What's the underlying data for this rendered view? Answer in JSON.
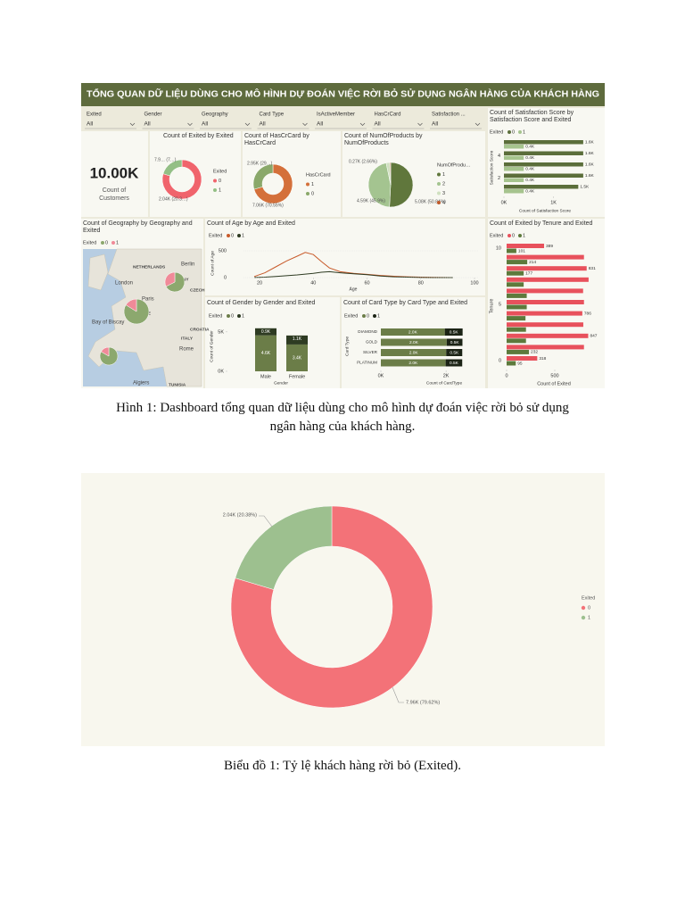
{
  "dashboard": {
    "title": "TỔNG QUAN DỮ LIỆU DÙNG CHO MÔ HÌNH DỰ ĐOÁN VIỆC RỜI BỎ SỬ DỤNG NGÂN HÀNG CỦA KHÁCH HÀNG",
    "slicers": [
      {
        "label": "Exited",
        "value": "All"
      },
      {
        "label": "Gender",
        "value": "All"
      },
      {
        "label": "Geography",
        "value": "All"
      },
      {
        "label": "Card Type",
        "value": "All"
      },
      {
        "label": "IsActiveMember",
        "value": "All"
      },
      {
        "label": "HasCrCard",
        "value": "All"
      },
      {
        "label": "Satisfaction ...",
        "value": "All"
      }
    ],
    "kpi": {
      "value": "10.00K",
      "label_lines": [
        "Count of",
        "Customers"
      ]
    },
    "exited_pie": {
      "type": "pie",
      "title": "Count of Exited by Exited",
      "legend_title": "Exited",
      "categories": [
        "0",
        "1"
      ],
      "values": [
        7962,
        2038
      ],
      "value_labels": [
        "7.9… (7…)",
        "2.04K (20.3…)"
      ],
      "colors": [
        "#f0646c",
        "#93bf85"
      ]
    },
    "hascrcard_pie": {
      "type": "pie",
      "title": "Count of HasCrCard by HasCrCard",
      "legend_title": "HasCrCard",
      "categories": [
        "1",
        "0"
      ],
      "values": [
        7055,
        2945
      ],
      "value_labels": [
        "7.06K (70.55%)",
        "2.95K (29…)"
      ],
      "colors": [
        "#d4703a",
        "#8aa86a"
      ]
    },
    "products_pie": {
      "type": "pie",
      "title": "Count of NumOfProducts by NumOfProducts",
      "legend_title": "NumOfProdu…",
      "categories": [
        "1",
        "2",
        "3",
        "4"
      ],
      "values": [
        5084,
        4590,
        266,
        60
      ],
      "value_labels": [
        "5.08K (50.84%)",
        "4.59K (45.9%)",
        "0.27K (2.66%)",
        null
      ],
      "colors": [
        "#60773c",
        "#a4c490",
        "#cfe0c0",
        "#c05a2a"
      ]
    },
    "satisfaction": {
      "type": "bar",
      "title": "Count of Satisfaction Score by Satisfaction Score and Exited",
      "legend_title": "Exited",
      "y_label": "Satisfaction Score",
      "x_label": "Count of Satisfaction Score",
      "categories": [
        null,
        "4",
        null,
        "2",
        null
      ],
      "series": [
        {
          "name": "0",
          "color": "#5b6e3a",
          "values": [
            1600,
            1600,
            1600,
            1600,
            1500
          ],
          "value_labels": [
            "1.6K",
            "1.6K",
            "1.6K",
            "1.6K",
            "1.5K"
          ]
        },
        {
          "name": "1",
          "color": "#a6c48e",
          "values": [
            400,
            400,
            400,
            400,
            400
          ],
          "value_labels": [
            "0.4K",
            "0.4K",
            "0.4K",
            "0.4K",
            "0.4K"
          ]
        }
      ],
      "xlim": [
        0,
        1800
      ],
      "xticks": [
        {
          "value": 0,
          "label": "0K"
        },
        {
          "value": 1000,
          "label": "1K"
        }
      ]
    },
    "geography": {
      "title": "Count of Geography by Geography and Exited",
      "legend_title": "Exited",
      "series": [
        {
          "name": "0",
          "color": "#8ca86e"
        },
        {
          "name": "1",
          "color": "#f08a98"
        }
      ],
      "places": [
        "NETHERLANDS",
        "Berlin",
        "London",
        "GERMANY",
        "CZECH",
        "Paris",
        "FRANCE",
        "Bay of Biscay",
        "ITALY",
        "CROATIA",
        "SPAIN",
        "Rome",
        "Algiers",
        "TUNISIA"
      ],
      "pies": [
        [
          1695,
          814
        ],
        [
          4204,
          810
        ],
        [
          2064,
          413
        ]
      ]
    },
    "age": {
      "type": "line",
      "title": "Count of Age by Age and Exited",
      "legend_title": "Exited",
      "x_label": "Age",
      "y_label": "Count of Age",
      "x": [
        18,
        22,
        26,
        30,
        34,
        37,
        40,
        43,
        46,
        50,
        55,
        60,
        65,
        70,
        75,
        80,
        85,
        92
      ],
      "series": [
        {
          "name": "0",
          "color": "#c85a2a",
          "values": [
            20,
            90,
            200,
            310,
            400,
            470,
            430,
            300,
            180,
            110,
            80,
            60,
            40,
            25,
            15,
            8,
            4,
            1
          ]
        },
        {
          "name": "1",
          "color": "#2e3b22",
          "values": [
            2,
            8,
            20,
            35,
            50,
            65,
            80,
            100,
            110,
            90,
            70,
            55,
            30,
            15,
            8,
            3,
            1,
            0
          ]
        }
      ],
      "xlim": [
        15,
        100
      ],
      "xticks": [
        20,
        40,
        60,
        80,
        100
      ],
      "ylim": [
        0,
        600
      ],
      "yticks": [
        0,
        500
      ]
    },
    "tenure": {
      "type": "bar",
      "title": "Count of Exited by Tenure and Exited",
      "legend_title": "Exited",
      "y_label": "Tenure",
      "x_label": "Count of Exited",
      "categories": [
        "10",
        null,
        null,
        null,
        null,
        "5",
        null,
        null,
        null,
        null,
        "0"
      ],
      "series": [
        {
          "name": "0",
          "color": "#e8515c",
          "values": [
            389,
            803,
            831,
            851,
            794,
            803,
            786,
            796,
            847,
            803,
            318
          ],
          "value_labels": [
            "389",
            null,
            "831",
            null,
            null,
            null,
            "786",
            null,
            "847",
            null,
            "318"
          ]
        },
        {
          "name": "1",
          "color": "#5d7a3c",
          "values": [
            101,
            214,
            177,
            177,
            209,
            209,
            196,
            201,
            201,
            232,
            95
          ],
          "value_labels": [
            "101",
            "214",
            "177",
            null,
            null,
            null,
            null,
            null,
            null,
            "232",
            "95"
          ]
        }
      ],
      "xlim": [
        0,
        1000
      ],
      "xticks": [
        0,
        500
      ]
    },
    "gender": {
      "type": "bar",
      "title": "Count of Gender by Gender and Exited",
      "legend_title": "Exited",
      "x_label": "Gender",
      "y_label": "Count of Gender",
      "categories": [
        "Male",
        "Female"
      ],
      "series": [
        {
          "name": "0",
          "color": "#6b7d48",
          "values": [
            4559,
            3404
          ],
          "value_labels": [
            "4.6K",
            "3.4K"
          ]
        },
        {
          "name": "1",
          "color": "#2e3b22",
          "values": [
            898,
            1139
          ],
          "value_labels": [
            "0.9K",
            "1.1K"
          ]
        }
      ],
      "ylim": [
        0,
        6000
      ],
      "yticks": [
        {
          "value": 0,
          "label": "0K"
        },
        {
          "value": 5000,
          "label": "5K"
        }
      ]
    },
    "card": {
      "type": "bar",
      "title": "Count of Card Type by Card Type and Exited",
      "legend_title": "Exited",
      "x_label": "Count of CardType",
      "y_label": "Card Type",
      "categories": [
        "DIAMOND",
        "GOLD",
        "SILVER",
        "PLATINUM"
      ],
      "series": [
        {
          "name": "0",
          "color": "#6b7d48",
          "values": [
            1961,
            2020,
            2004,
            1987
          ],
          "value_labels": [
            "2.0K",
            "2.0K",
            "2.0K",
            "2.0K"
          ]
        },
        {
          "name": "1",
          "color": "#1c2416",
          "values": [
            546,
            482,
            492,
            508
          ],
          "value_labels": [
            "0.5K",
            "0.5K",
            "0.5K",
            "0.5K"
          ]
        }
      ],
      "xlim": [
        0,
        3200
      ],
      "xticks": [
        {
          "value": 0,
          "label": "0K"
        },
        {
          "value": 2000,
          "label": "2K"
        }
      ]
    }
  },
  "captions": [
    [
      "Hình 1: Dashboard tổng quan dữ liệu dùng cho mô hình dự đoán việc rời bỏ sử dụng",
      "ngân hàng của khách hàng."
    ],
    [
      "Biểu đồ 1: Tỷ lệ khách hàng rời bỏ (Exited)."
    ]
  ],
  "chart_data": {
    "type": "pie",
    "legend_title": "Exited",
    "categories": [
      "0",
      "1"
    ],
    "values": [
      7962,
      2038
    ],
    "value_labels": [
      "7.96K (79.62%)",
      "2.04K (20.38%)"
    ],
    "colors": [
      "#f37278",
      "#9dc08f"
    ],
    "donut": true
  }
}
